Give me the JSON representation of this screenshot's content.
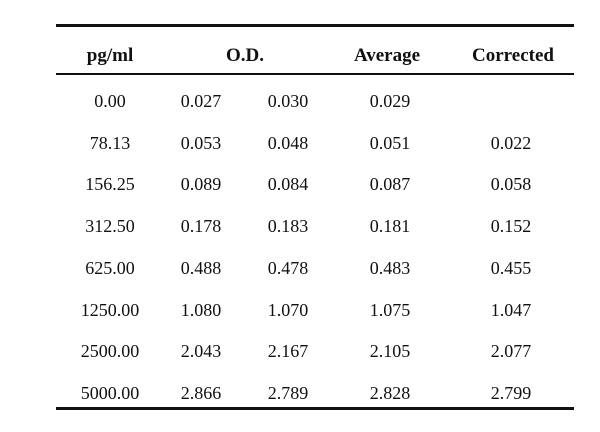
{
  "table": {
    "headers": {
      "concentration": "pg/ml",
      "od": "O.D.",
      "average": "Average",
      "corrected": "Corrected"
    },
    "rows": [
      [
        "0.00",
        "0.027",
        "0.030",
        "0.029",
        ""
      ],
      [
        "78.13",
        "0.053",
        "0.048",
        "0.051",
        "0.022"
      ],
      [
        "156.25",
        "0.089",
        "0.084",
        "0.087",
        "0.058"
      ],
      [
        "312.50",
        "0.178",
        "0.183",
        "0.181",
        "0.152"
      ],
      [
        "625.00",
        "0.488",
        "0.478",
        "0.483",
        "0.455"
      ],
      [
        "1250.00",
        "1.080",
        "1.070",
        "1.075",
        "1.047"
      ],
      [
        "2500.00",
        "2.043",
        "2.167",
        "2.105",
        "2.077"
      ],
      [
        "5000.00",
        "2.866",
        "2.789",
        "2.828",
        "2.799"
      ]
    ]
  }
}
